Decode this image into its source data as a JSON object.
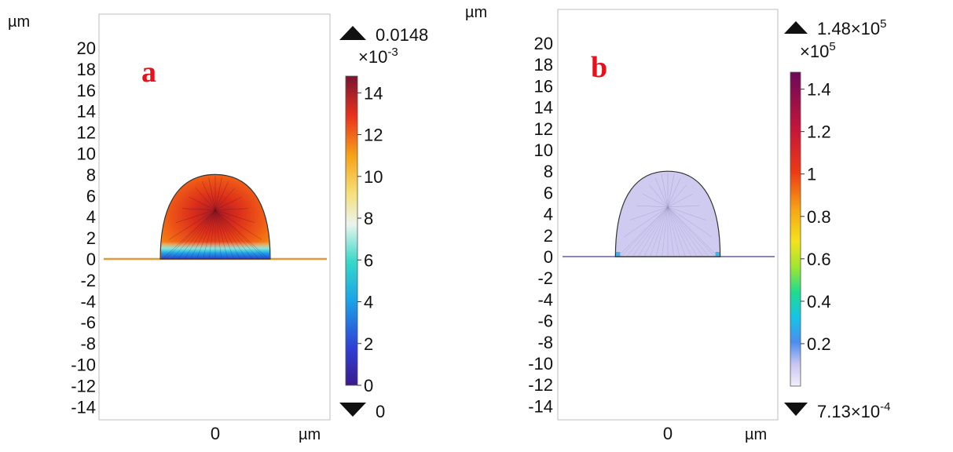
{
  "chart_data": [
    {
      "type": "heatmap",
      "panel_label": "a",
      "y_unit": "µm",
      "x_unit": "µm",
      "y_ticks": [
        20,
        18,
        16,
        14,
        12,
        10,
        8,
        6,
        4,
        2,
        0,
        -2,
        -4,
        -6,
        -8,
        -10,
        -12,
        -14
      ],
      "y_tick_labels": [
        "20",
        "18",
        "16",
        "14",
        "12",
        "10",
        "8",
        "6",
        "4",
        "2",
        "0",
        "-2",
        "-4",
        "-6",
        "-8",
        "-10",
        "-12",
        "-14"
      ],
      "x_ticks": [
        0
      ],
      "x_tick_labels": [
        "0"
      ],
      "ylim": [
        -15.5,
        22.5
      ],
      "xlim": [
        -10.5,
        10.5
      ],
      "droplet": {
        "half_width": 5.2,
        "height": 8,
        "base_y": 0
      },
      "substrate_line_y": 0,
      "colorbar": {
        "max_label": "0.0148",
        "min_label": "0",
        "multiplier_base": "×10",
        "multiplier_exp": "-3",
        "ticks": [
          0,
          2,
          4,
          6,
          8,
          10,
          12,
          14
        ],
        "tick_labels": [
          "0",
          "2",
          "4",
          "6",
          "8",
          "10",
          "12",
          "14"
        ],
        "range": [
          0,
          14.8
        ],
        "colormap": "rainbow"
      }
    },
    {
      "type": "heatmap",
      "panel_label": "b",
      "y_unit": "µm",
      "x_unit": "µm",
      "y_ticks": [
        20,
        18,
        16,
        14,
        12,
        10,
        8,
        6,
        4,
        2,
        0,
        -2,
        -4,
        -6,
        -8,
        -10,
        -12,
        -14
      ],
      "y_tick_labels": [
        "20",
        "18",
        "16",
        "14",
        "12",
        "10",
        "8",
        "6",
        "4",
        "2",
        "0",
        "-2",
        "-4",
        "-6",
        "-8",
        "-10",
        "-12",
        "-14"
      ],
      "x_ticks": [
        0
      ],
      "x_tick_labels": [
        "0"
      ],
      "ylim": [
        -15.5,
        22.5
      ],
      "xlim": [
        -10.5,
        10.5
      ],
      "droplet": {
        "half_width": 4.9,
        "height": 8,
        "base_y": 0
      },
      "substrate_line_y": 0,
      "colorbar": {
        "max_label_base": "1.48×10",
        "max_label_exp": "5",
        "min_label_base": "7.13×10",
        "min_label_exp": "-4",
        "multiplier_base": "×10",
        "multiplier_exp": "5",
        "ticks": [
          0.2,
          0.4,
          0.6,
          0.8,
          1,
          1.2,
          1.4
        ],
        "tick_labels": [
          "0.2",
          "0.4",
          "0.6",
          "0.8",
          "1",
          "1.2",
          "1.4"
        ],
        "range": [
          0,
          1.48
        ],
        "colormap": "rainbow-light"
      }
    }
  ]
}
